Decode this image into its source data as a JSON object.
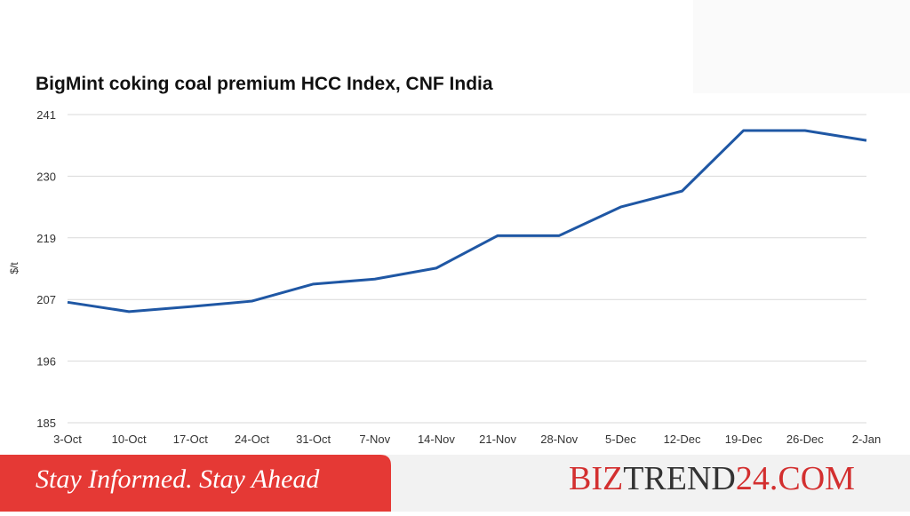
{
  "chart_data": {
    "type": "line",
    "title": "BigMint coking coal premium HCC Index, CNF India",
    "y_label": "$/t",
    "categories": [
      "3-Oct",
      "10-Oct",
      "17-Oct",
      "24-Oct",
      "31-Oct",
      "7-Nov",
      "14-Nov",
      "21-Nov",
      "28-Nov",
      "5-Dec",
      "12-Dec",
      "19-Dec",
      "26-Dec",
      "2-Jan"
    ],
    "series": [
      {
        "name": "HCC Index",
        "color": "#1f57a4",
        "values": [
          206.9,
          205.2,
          206.1,
          207.1,
          210.2,
          211.1,
          213.1,
          219.0,
          219.0,
          224.2,
          227.1,
          238.1,
          238.1,
          236.3
        ]
      }
    ],
    "ylim": [
      185,
      241
    ],
    "yticks": [
      185,
      {
        "value": 196.2,
        "label": "196"
      },
      {
        "value": 207.4,
        "label": "207"
      },
      {
        "value": 218.6,
        "label": "219"
      },
      {
        "value": 229.8,
        "label": "230"
      },
      241
    ],
    "grid": true
  },
  "banner": {
    "tagline": "Stay Informed. Stay Ahead",
    "brand_parts": [
      "BIZ",
      "TREND",
      "24.COM"
    ]
  }
}
